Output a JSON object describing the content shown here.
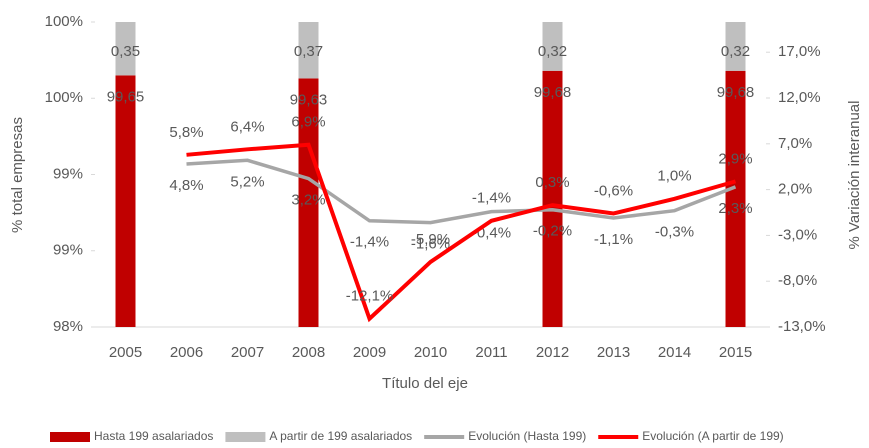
{
  "chart_data": {
    "type": "bar_line",
    "x_title": "Título del eje",
    "y_title": "% total empresas",
    "y2_title": "% Variación interanual",
    "categories": [
      "2005",
      "2006",
      "2007",
      "2008",
      "2009",
      "2010",
      "2011",
      "2012",
      "2013",
      "2014",
      "2015"
    ],
    "ylim": [
      98,
      100
    ],
    "yticks": [
      {
        "value": 98,
        "label": "98%"
      },
      {
        "value": 98.5,
        "label": "99%"
      },
      {
        "value": 99,
        "label": "99%"
      },
      {
        "value": 99.5,
        "label": "100%"
      },
      {
        "value": 100,
        "label": "100%"
      }
    ],
    "y2lim": [
      -13,
      20.3
    ],
    "y2ticks": [
      {
        "value": -13,
        "label": "-13,0%"
      },
      {
        "value": -8,
        "label": "-8,0%"
      },
      {
        "value": -3,
        "label": "-3,0%"
      },
      {
        "value": 2,
        "label": "2,0%"
      },
      {
        "value": 7,
        "label": "7,0%"
      },
      {
        "value": 12,
        "label": "12,0%"
      },
      {
        "value": 17,
        "label": "17,0%"
      }
    ],
    "series": [
      {
        "name": "Hasta 199 asalariados",
        "kind": "bar",
        "color": "#c00000",
        "values": [
          99.65,
          null,
          null,
          99.63,
          null,
          null,
          null,
          99.68,
          null,
          null,
          99.68
        ],
        "value_labels": [
          "99,65",
          null,
          null,
          "99,63",
          null,
          null,
          null,
          "99,68",
          null,
          null,
          "99,68"
        ]
      },
      {
        "name": "A partir de 199 asalariados",
        "kind": "bar",
        "color": "#bfbfbf",
        "values": [
          0.35,
          null,
          null,
          0.37,
          null,
          null,
          null,
          0.32,
          null,
          null,
          0.32
        ],
        "value_labels": [
          "0,35",
          null,
          null,
          "0,37",
          null,
          null,
          null,
          "0,32",
          null,
          null,
          "0,32"
        ]
      },
      {
        "name": "Evolución (Hasta 199)",
        "kind": "line",
        "axis": "y2",
        "color": "#a6a6a6",
        "values": [
          null,
          4.8,
          5.2,
          3.2,
          -1.4,
          -1.6,
          -0.4,
          -0.2,
          -1.1,
          -0.3,
          2.3
        ],
        "value_labels": [
          null,
          "4,8%",
          "5,2%",
          "3,2%",
          "-1,4%",
          "-1,6%",
          "-0,4%",
          "-0,2%",
          "-1,1%",
          "-0,3%",
          "2,3%"
        ]
      },
      {
        "name": "Evolución (A partir de 199)",
        "kind": "line",
        "axis": "y2",
        "color": "#ff0000",
        "values": [
          null,
          5.8,
          6.4,
          6.9,
          -12.1,
          -5.9,
          -1.4,
          0.3,
          -0.6,
          1.0,
          2.9
        ],
        "value_labels": [
          null,
          "5,8%",
          "6,4%",
          "6,9%",
          "-12,1%",
          "-5,9%",
          "-1,4%",
          "0,3%",
          "-0,6%",
          "1,0%",
          "2,9%"
        ]
      }
    ]
  }
}
